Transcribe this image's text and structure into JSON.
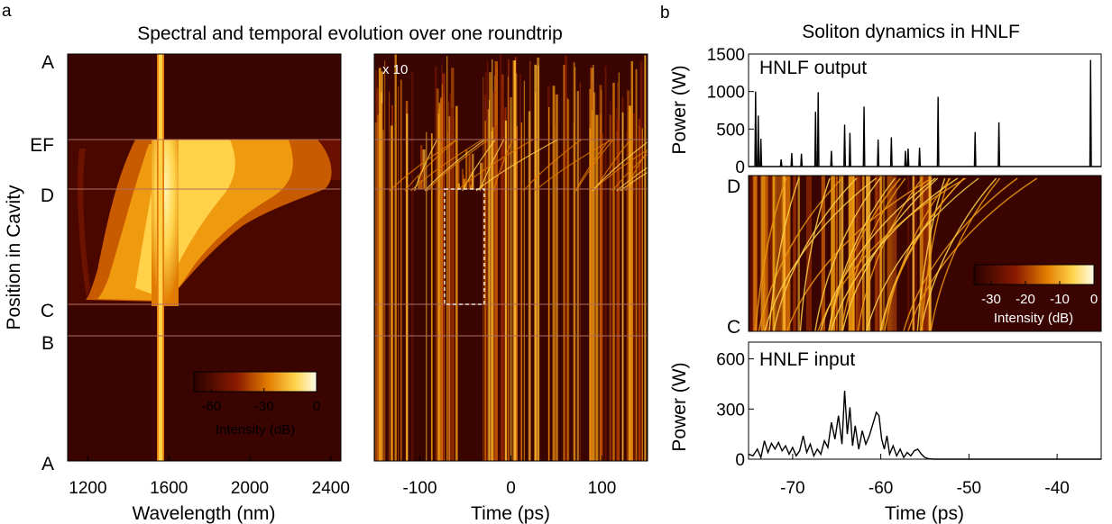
{
  "figure": {
    "panel_a_letter": "a",
    "panel_b_letter": "b",
    "title_a": "Spectral and temporal evolution over one roundtrip",
    "title_b": "Soliton dynamics in HNLF",
    "cavity_ylabel": "Position in Cavity",
    "cavity_positions": [
      "A",
      "EF",
      "D",
      "C",
      "B",
      "A"
    ],
    "colors": {
      "dark": "#3a0400",
      "mid": "#c85a00",
      "bright": "#ffd24a",
      "white": "#fffbe0"
    }
  },
  "chart_data": [
    {
      "type": "heatmap",
      "panel": "a-left",
      "xlabel": "Wavelength (nm)",
      "xticks": [
        1200,
        1600,
        2000,
        2400
      ],
      "xlim": [
        1100,
        2450
      ],
      "ylabel": "Position in Cavity",
      "colorbar": {
        "label": "Intensity (dB)",
        "ticks": [
          -60,
          -30,
          0
        ],
        "range": [
          -70,
          0
        ]
      }
    },
    {
      "type": "heatmap",
      "panel": "a-right",
      "xlabel": "Time (ps)",
      "xticks": [
        -100,
        0,
        100
      ],
      "xlim": [
        -150,
        150
      ],
      "annotation": "x 10"
    },
    {
      "type": "line",
      "panel": "b-top",
      "inset_label": "HNLF output",
      "xlim": [
        -75,
        -35
      ],
      "ylim": [
        0,
        1500
      ],
      "yticks": [
        0,
        500,
        1000,
        1500
      ],
      "ylabel": "Power (W)",
      "peaks": [
        {
          "x": -74.2,
          "y": 1000
        },
        {
          "x": -73.9,
          "y": 680
        },
        {
          "x": -73.6,
          "y": 370
        },
        {
          "x": -71.3,
          "y": 95
        },
        {
          "x": -70.1,
          "y": 180
        },
        {
          "x": -69.0,
          "y": 170
        },
        {
          "x": -67.4,
          "y": 730
        },
        {
          "x": -67.1,
          "y": 990
        },
        {
          "x": -65.6,
          "y": 210
        },
        {
          "x": -64.1,
          "y": 560
        },
        {
          "x": -63.5,
          "y": 450
        },
        {
          "x": -61.9,
          "y": 800
        },
        {
          "x": -60.3,
          "y": 360
        },
        {
          "x": -58.8,
          "y": 390
        },
        {
          "x": -57.2,
          "y": 210
        },
        {
          "x": -56.9,
          "y": 240
        },
        {
          "x": -55.6,
          "y": 250
        },
        {
          "x": -53.5,
          "y": 930
        },
        {
          "x": -49.3,
          "y": 460
        },
        {
          "x": -46.6,
          "y": 590
        },
        {
          "x": -36.2,
          "y": 1420
        }
      ]
    },
    {
      "type": "heatmap",
      "panel": "b-middle",
      "ylabel_top": "D",
      "ylabel_bottom": "C",
      "colorbar": {
        "label": "Intensity (dB)",
        "ticks": [
          -30,
          -20,
          -10,
          0
        ],
        "range": [
          -35,
          0
        ]
      }
    },
    {
      "type": "line",
      "panel": "b-bottom",
      "inset_label": "HNLF input",
      "xlabel": "Time (ps)",
      "xlim": [
        -75,
        -35
      ],
      "xticks": [
        -70,
        -60,
        -50,
        -40
      ],
      "ylim": [
        0,
        700
      ],
      "yticks": [
        0,
        300,
        600
      ],
      "ylabel": "Power (W)",
      "x": [
        -75,
        -74.5,
        -74,
        -73.6,
        -73.2,
        -72.8,
        -72.4,
        -72,
        -71.6,
        -71.2,
        -70.8,
        -70.4,
        -70,
        -69.6,
        -69.2,
        -68.8,
        -68.4,
        -68,
        -67.6,
        -67.2,
        -66.8,
        -66.4,
        -66,
        -65.6,
        -65.2,
        -64.8,
        -64.4,
        -64.1,
        -63.8,
        -63.5,
        -63.2,
        -62.9,
        -62.5,
        -62.1,
        -61.7,
        -61.3,
        -60.9,
        -60.5,
        -60.2,
        -59.9,
        -59.6,
        -59.3,
        -59,
        -58.6,
        -58.2,
        -57.8,
        -57.4,
        -57,
        -56.6,
        -56.2,
        -55.8,
        -55.4,
        -55,
        -54.5,
        -54,
        -50,
        -45,
        -40,
        -35
      ],
      "y": [
        30,
        20,
        60,
        10,
        110,
        40,
        95,
        60,
        100,
        50,
        80,
        30,
        70,
        20,
        50,
        140,
        40,
        90,
        20,
        60,
        30,
        110,
        70,
        220,
        120,
        260,
        90,
        410,
        150,
        310,
        80,
        200,
        60,
        170,
        90,
        140,
        210,
        280,
        260,
        120,
        60,
        140,
        30,
        80,
        20,
        60,
        10,
        40,
        20,
        50,
        60,
        30,
        10,
        2,
        0,
        0,
        0,
        0,
        0
      ]
    }
  ]
}
